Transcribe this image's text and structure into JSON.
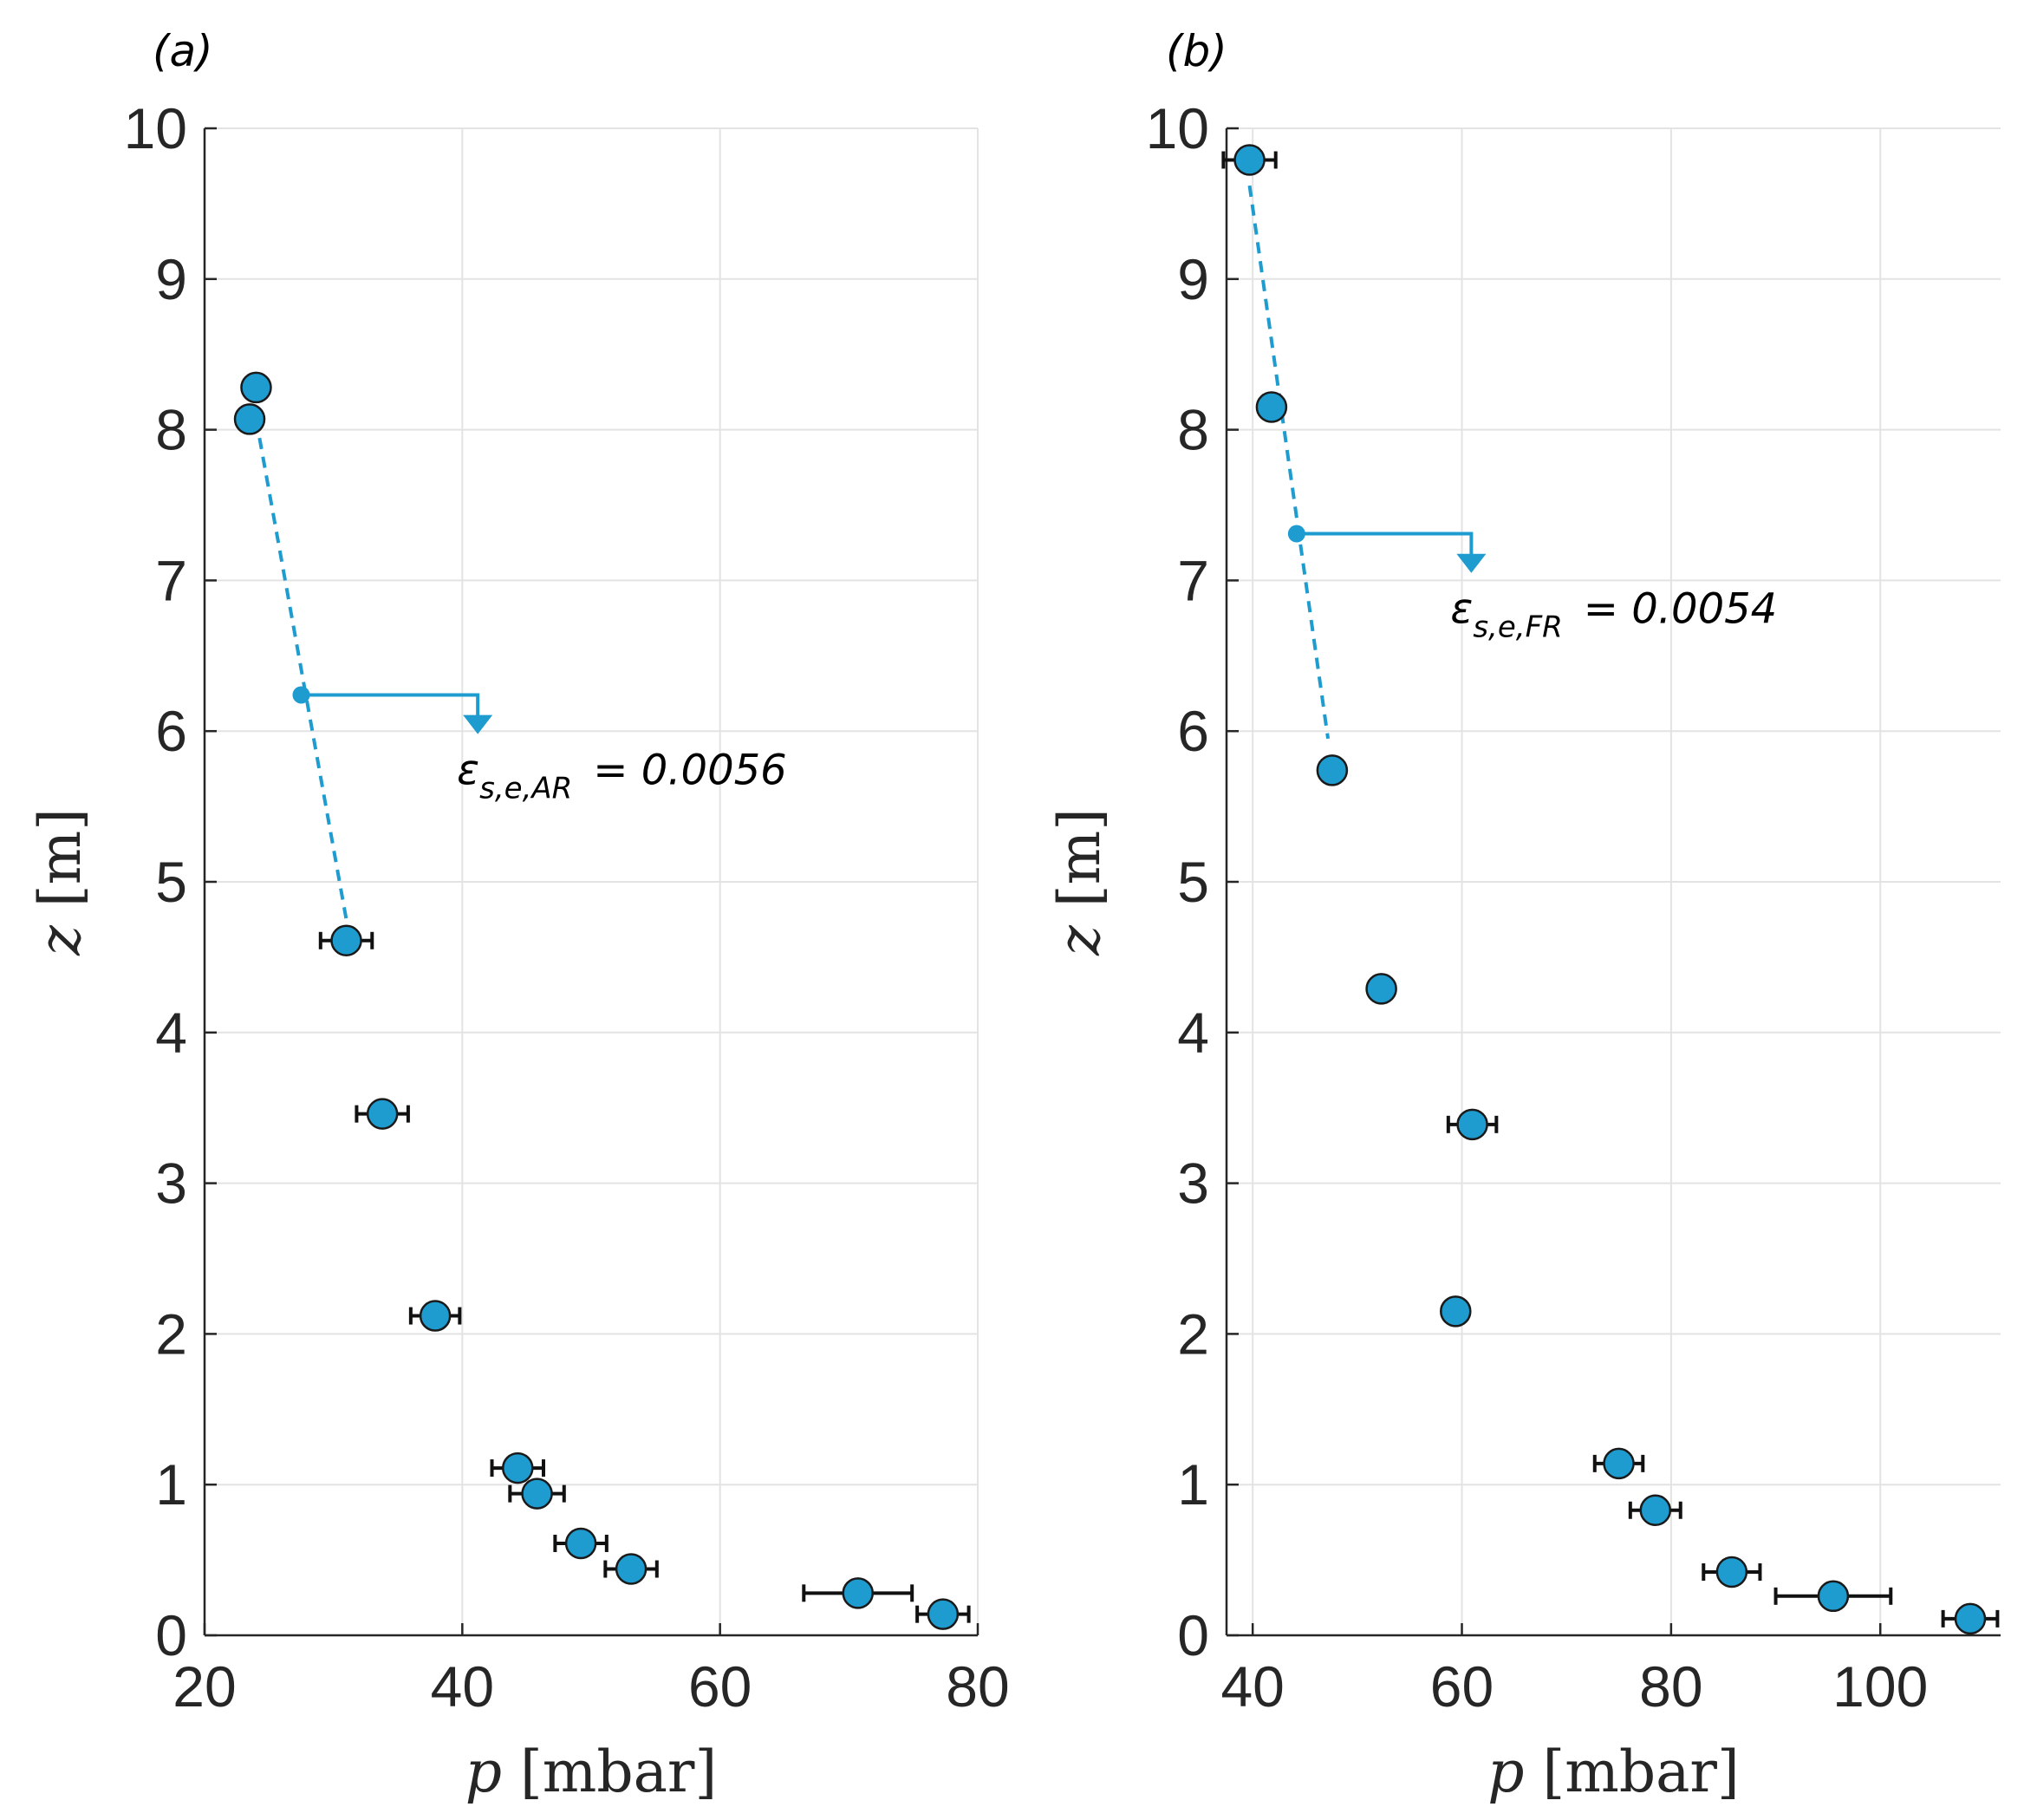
{
  "chart_data": [
    {
      "type": "scatter",
      "panel_label": "(a)",
      "xlabel": {
        "var": "p",
        "unit": "[mbar]"
      },
      "ylabel": {
        "var": "z",
        "unit": "[m]"
      },
      "xlim": [
        20,
        80
      ],
      "ylim": [
        0,
        10
      ],
      "xticks": [
        "20",
        "40",
        "60",
        "80"
      ],
      "yticks": [
        "0",
        "1",
        "2",
        "3",
        "4",
        "5",
        "6",
        "7",
        "8",
        "9",
        "10"
      ],
      "grid": true,
      "color": "#1e9cd0",
      "points": [
        {
          "x": 24.0,
          "y": 8.28,
          "xerr": 0
        },
        {
          "x": 23.5,
          "y": 8.07,
          "xerr": 0
        },
        {
          "x": 31.0,
          "y": 4.61,
          "xerr": 2.0
        },
        {
          "x": 33.8,
          "y": 3.46,
          "xerr": 2.0
        },
        {
          "x": 37.9,
          "y": 2.12,
          "xerr": 1.9
        },
        {
          "x": 44.3,
          "y": 1.11,
          "xerr": 2.0
        },
        {
          "x": 45.8,
          "y": 0.94,
          "xerr": 2.1
        },
        {
          "x": 49.2,
          "y": 0.61,
          "xerr": 2.0
        },
        {
          "x": 53.1,
          "y": 0.44,
          "xerr": 2.0
        },
        {
          "x": 70.7,
          "y": 0.28,
          "xerr": 4.2
        },
        {
          "x": 77.3,
          "y": 0.14,
          "xerr": 2.0
        }
      ],
      "fit_line": {
        "x": [
          24.0,
          31.0
        ],
        "y": [
          8.07,
          4.75
        ]
      },
      "annotation": {
        "symbol": "ε",
        "subscript": "s,e,AR",
        "equals": "= 0.0056",
        "marker_point": {
          "x": 27.5,
          "y": 6.24
        },
        "arrow_x": 41.2,
        "arrow_tip_y": 5.98
      }
    },
    {
      "type": "scatter",
      "panel_label": "(b)",
      "xlabel": {
        "var": "p",
        "unit": "[mbar]"
      },
      "ylabel": {
        "var": "z",
        "unit": "[m]"
      },
      "xlim": [
        37.5,
        111.5
      ],
      "ylim": [
        0,
        10
      ],
      "xticks": [
        "40",
        "60",
        "80",
        "100"
      ],
      "yticks": [
        "0",
        "1",
        "2",
        "3",
        "4",
        "5",
        "6",
        "7",
        "8",
        "9",
        "10"
      ],
      "grid": true,
      "color": "#1e9cd0",
      "points": [
        {
          "x": 39.7,
          "y": 9.79,
          "xerr": 2.5
        },
        {
          "x": 41.8,
          "y": 8.15,
          "xerr": 0
        },
        {
          "x": 47.6,
          "y": 5.74,
          "xerr": 0
        },
        {
          "x": 52.3,
          "y": 4.29,
          "xerr": 0
        },
        {
          "x": 61.0,
          "y": 3.39,
          "xerr": 2.3
        },
        {
          "x": 59.4,
          "y": 2.15,
          "xerr": 0
        },
        {
          "x": 75.0,
          "y": 1.14,
          "xerr": 2.3
        },
        {
          "x": 78.5,
          "y": 0.83,
          "xerr": 2.4
        },
        {
          "x": 85.8,
          "y": 0.42,
          "xerr": 2.7
        },
        {
          "x": 95.5,
          "y": 0.26,
          "xerr": 5.5
        },
        {
          "x": 108.6,
          "y": 0.11,
          "xerr": 2.6
        }
      ],
      "fit_line": {
        "x": [
          39.7,
          47.2
        ],
        "y": [
          9.62,
          5.95
        ]
      },
      "annotation": {
        "symbol": "ε",
        "subscript": "s,e,FR",
        "equals": "= 0.0054",
        "marker_point": {
          "x": 44.2,
          "y": 7.31
        },
        "arrow_x": 60.9,
        "arrow_tip_y": 7.05
      }
    }
  ]
}
